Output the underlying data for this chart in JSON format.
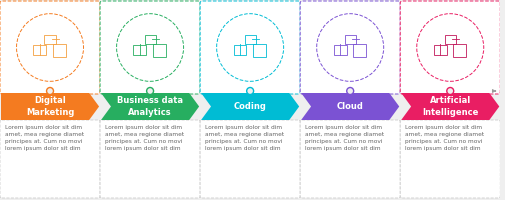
{
  "steps": [
    {
      "title": "Digital\nMarketing",
      "color": "#F47B20",
      "icon_color": "#F4A040"
    },
    {
      "title": "Business data\nAnalytics",
      "color": "#27AE60",
      "icon_color": "#27AE60"
    },
    {
      "title": "Coding",
      "color": "#00BCD4",
      "icon_color": "#00BCD4"
    },
    {
      "title": "Cloud",
      "color": "#7B52D3",
      "icon_color": "#7B52D3"
    },
    {
      "title": "Artificial\nIntelligence",
      "color": "#E91E63",
      "icon_color": "#C2185B"
    }
  ],
  "lorem_text": "Lorem ipsum dolor sit dim\namet, mea regione diamet\nprincipes at. Cum no movi\nlorem ipsum dolor sit dim",
  "background_color": "#efefef",
  "box_bg": "#ffffff",
  "n_steps": 5,
  "title_fontsize": 6.0,
  "body_fontsize": 4.2,
  "dot_line_color": "#bbbbbb",
  "body_border_color": "#cccccc"
}
